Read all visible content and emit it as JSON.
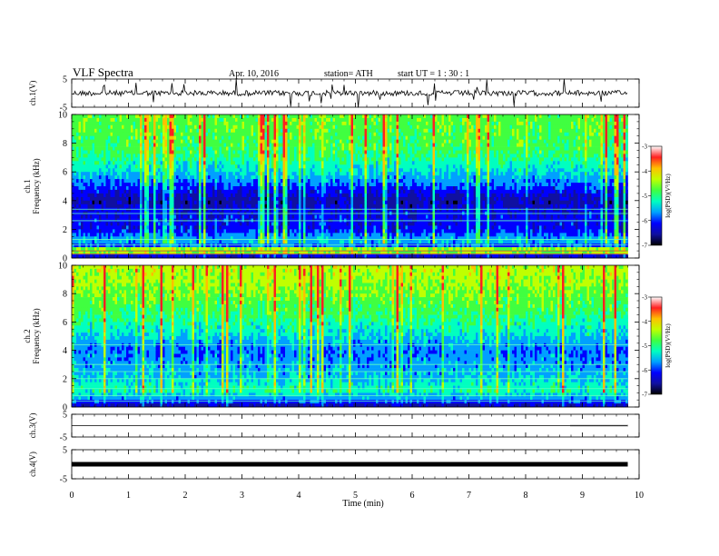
{
  "header": {
    "title": "VLF  Spectra",
    "date": "Apr. 10, 2016",
    "station": "station= ATH",
    "start": "start  UT  =   1  : 30 : 1"
  },
  "chart_data": [
    {
      "type": "line",
      "panel": "ch1-waveform",
      "ylabel": "ch.1(V)",
      "ylim": [
        -5,
        5
      ],
      "yticks": [
        "5",
        "-5"
      ],
      "xlim": [
        0,
        10
      ],
      "series": [
        {
          "x": [
            0,
            9.8
          ],
          "y": [
            0,
            0
          ]
        }
      ]
    },
    {
      "type": "heatmap",
      "panel": "ch1-spectrogram",
      "ylabel": [
        "ch.1",
        "Frequency  (kHz)"
      ],
      "xlim": [
        0,
        10
      ],
      "ylim": [
        0,
        10
      ],
      "yticks": [
        "0",
        "2",
        "4",
        "6",
        "8",
        "10"
      ],
      "colorbar": {
        "label": "log(PSD)(V²/Hz)",
        "range": [
          -7,
          -3
        ],
        "ticks": [
          "-3",
          "-4",
          "-5",
          "-6",
          "-7"
        ]
      },
      "data_extent_x": [
        0,
        9.8
      ]
    },
    {
      "type": "heatmap",
      "panel": "ch2-spectrogram",
      "ylabel": [
        "ch.2",
        "Frequency  (kHz)"
      ],
      "xlim": [
        0,
        10
      ],
      "ylim": [
        0,
        10
      ],
      "yticks": [
        "0",
        "2",
        "4",
        "6",
        "8",
        "10"
      ],
      "colorbar": {
        "label": "log(PSD)(V²/Hz)",
        "range": [
          -7,
          -3
        ],
        "ticks": [
          "-3",
          "-4",
          "-5",
          "-6",
          "-7"
        ]
      },
      "data_extent_x": [
        0,
        9.8
      ]
    },
    {
      "type": "line",
      "panel": "ch3-waveform",
      "ylabel": "ch.3(V)",
      "ylim": [
        -5,
        5
      ],
      "yticks": [
        "5",
        "-5"
      ],
      "xlim": [
        0,
        10
      ],
      "series": [
        {
          "x": [
            0,
            9.8
          ],
          "y": [
            0,
            0
          ]
        }
      ]
    },
    {
      "type": "line",
      "panel": "ch4-waveform",
      "ylabel": "ch.4(V)",
      "ylim": [
        -5,
        5
      ],
      "yticks": [
        "5",
        "-5"
      ],
      "xlim": [
        0,
        10
      ],
      "series": [
        {
          "x": [
            0,
            9.8
          ],
          "y": [
            0,
            0
          ]
        }
      ]
    }
  ],
  "xaxis": {
    "label": "Time  (min)",
    "ticks": [
      "0",
      "1",
      "2",
      "3",
      "4",
      "5",
      "6",
      "7",
      "8",
      "9",
      "10"
    ]
  },
  "colors": {
    "scale": [
      "#000000",
      "#1010a0",
      "#0000ff",
      "#00a0ff",
      "#00ffc0",
      "#40ff40",
      "#c0ff00",
      "#ffc000",
      "#ff2020",
      "#ffffff"
    ]
  }
}
